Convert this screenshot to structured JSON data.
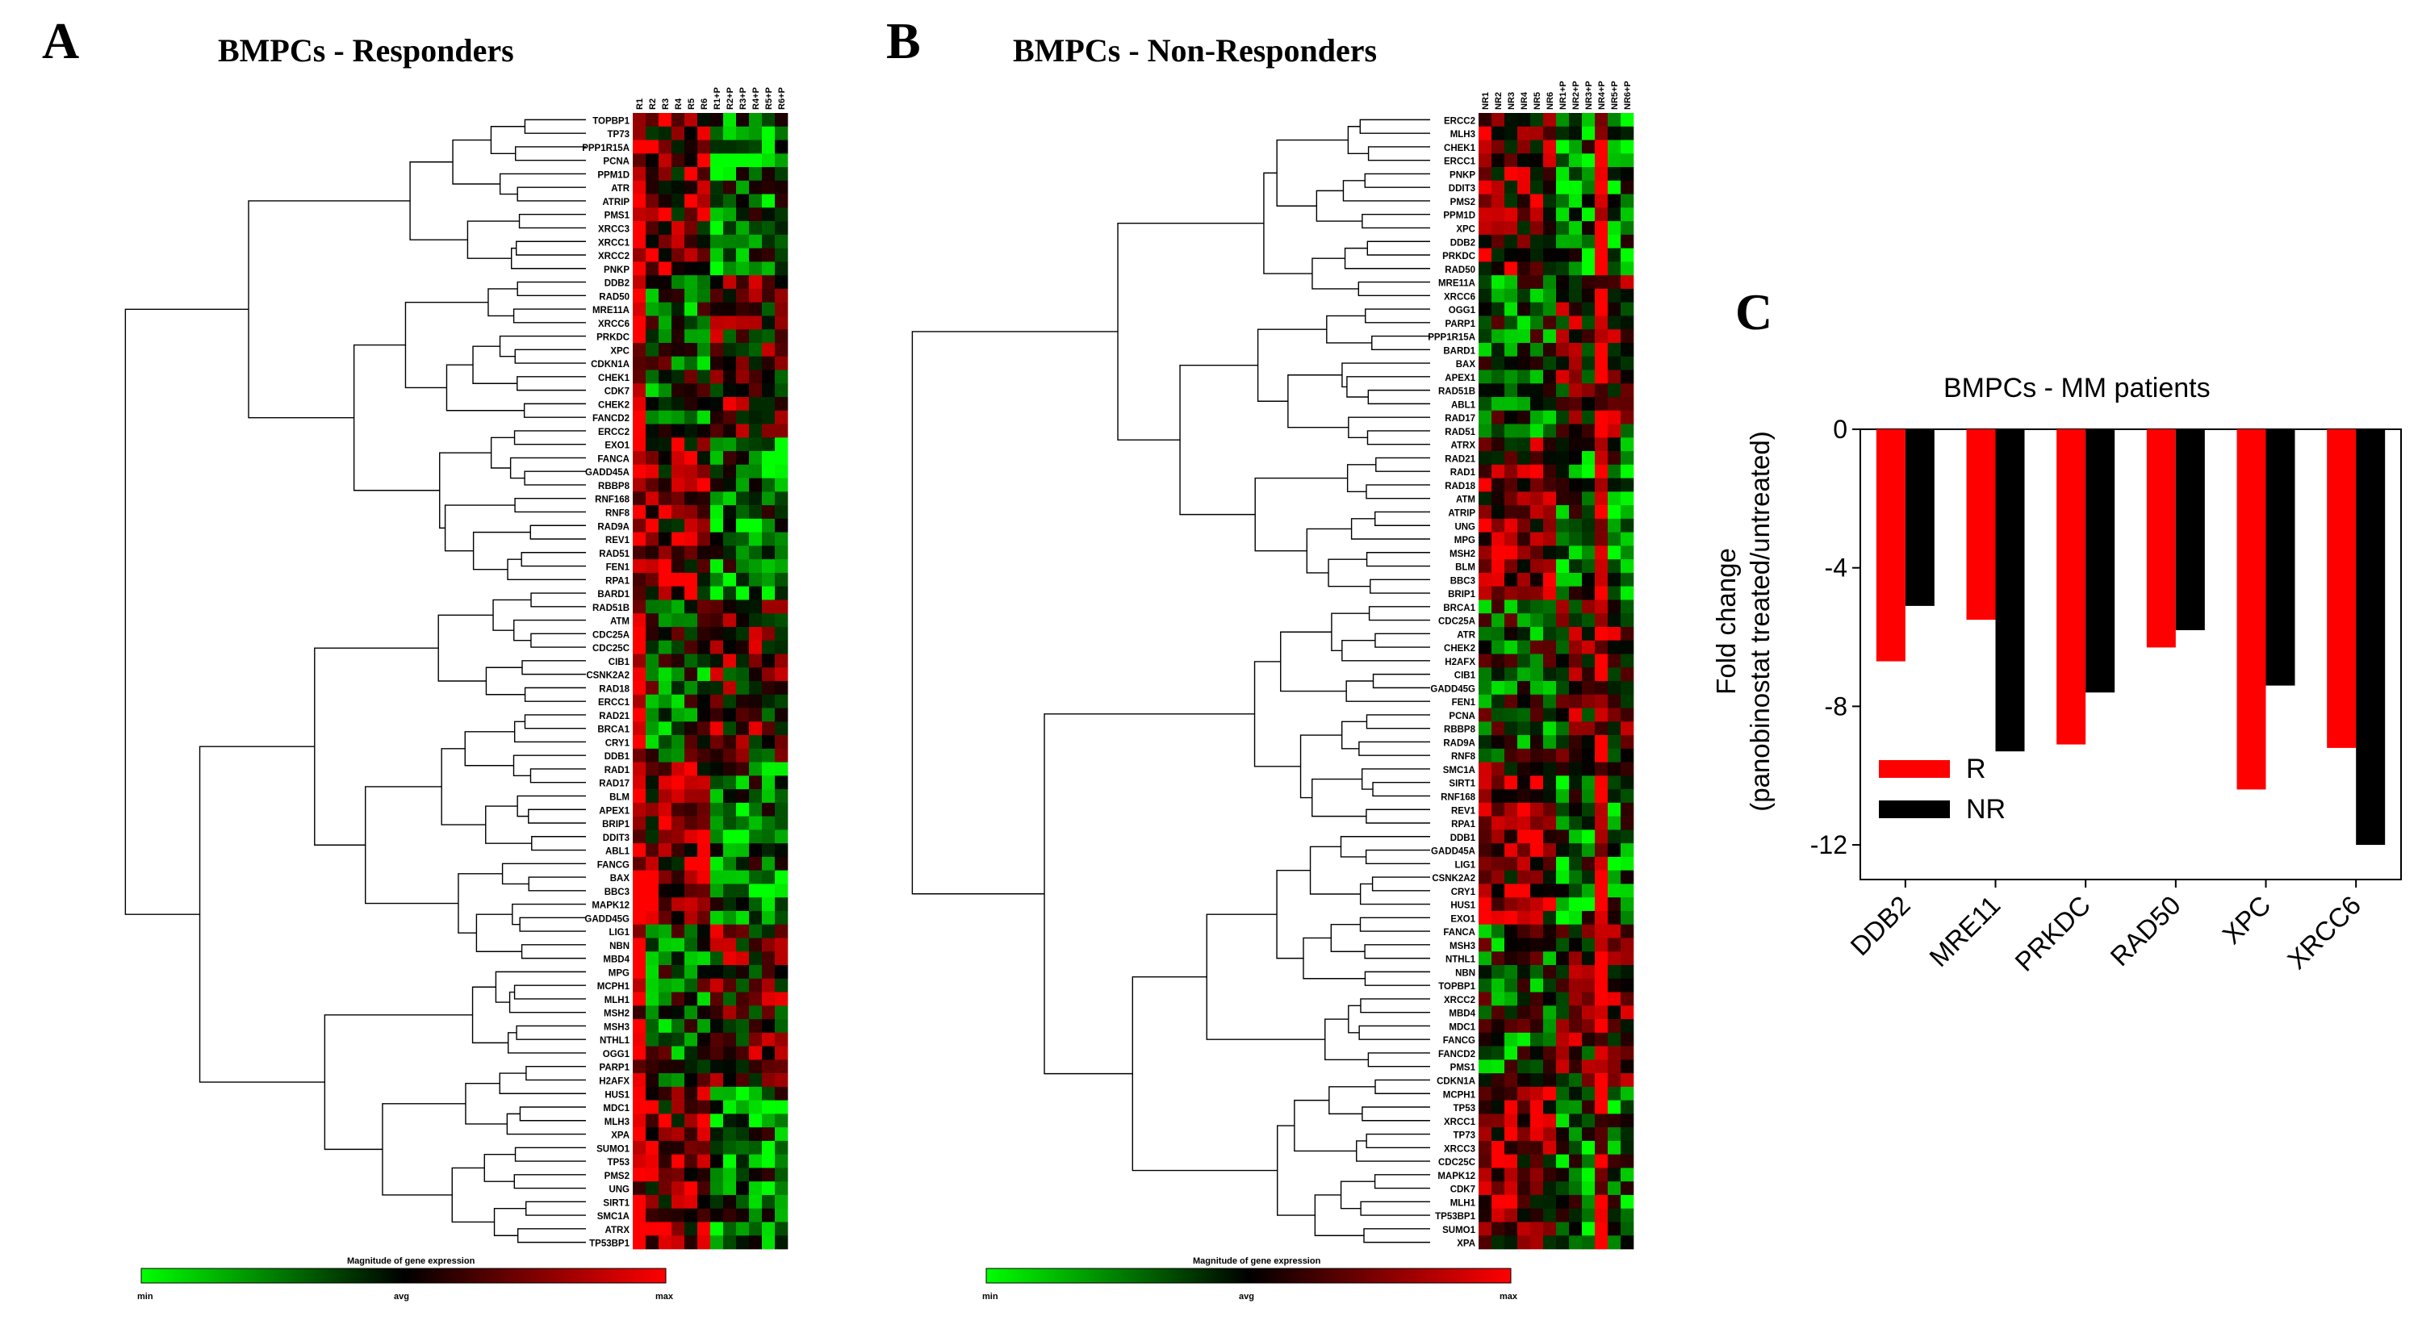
{
  "panel_a": {
    "letter": "A",
    "title": "BMPCs - Responders",
    "columns": [
      "R1",
      "R2",
      "R3",
      "R4",
      "R5",
      "R6",
      "R1+P",
      "R2+P",
      "R3+P",
      "R4+P",
      "R5+P",
      "R6+P"
    ],
    "genes": [
      "TOPBP1",
      "TP73",
      "PPP1R15A",
      "PCNA",
      "PPM1D",
      "ATR",
      "ATRIP",
      "PMS1",
      "XRCC3",
      "XRCC1",
      "XRCC2",
      "PNKP",
      "DDB2",
      "RAD50",
      "MRE11A",
      "XRCC6",
      "PRKDC",
      "XPC",
      "CDKN1A",
      "CHEK1",
      "CDK7",
      "CHEK2",
      "FANCD2",
      "ERCC2",
      "EXO1",
      "FANCA",
      "GADD45A",
      "RBBP8",
      "RNF168",
      "RNF8",
      "RAD9A",
      "REV1",
      "RAD51",
      "FEN1",
      "RPA1",
      "BARD1",
      "RAD51B",
      "ATM",
      "CDC25A",
      "CDC25C",
      "CIB1",
      "CSNK2A2",
      "RAD18",
      "ERCC1",
      "RAD21",
      "BRCA1",
      "CRY1",
      "DDB1",
      "RAD1",
      "RAD17",
      "BLM",
      "APEX1",
      "BRIP1",
      "DDIT3",
      "ABL1",
      "FANCG",
      "BAX",
      "BBC3",
      "MAPK12",
      "GADD45G",
      "LIG1",
      "NBN",
      "MBD4",
      "MPG",
      "MCPH1",
      "MLH1",
      "MSH2",
      "MSH3",
      "NTHL1",
      "OGG1",
      "PARP1",
      "H2AFX",
      "HUS1",
      "MDC1",
      "MLH3",
      "XPA",
      "SUMO1",
      "TP53",
      "PMS2",
      "UNG",
      "SIRT1",
      "SMC1A",
      "ATRX",
      "TP53BP1"
    ],
    "legend_label": "Magnitude of gene expression",
    "legend_min": "min",
    "legend_avg": "avg",
    "legend_max": "max"
  },
  "panel_b": {
    "letter": "B",
    "title": "BMPCs - Non-Responders",
    "columns": [
      "NR1",
      "NR2",
      "NR3",
      "NR4",
      "NR5",
      "NR6",
      "NR1+P",
      "NR2+P",
      "NR3+P",
      "NR4+P",
      "NR5+P",
      "NR6+P"
    ],
    "genes": [
      "ERCC2",
      "MLH3",
      "CHEK1",
      "ERCC1",
      "PNKP",
      "DDIT3",
      "PMS2",
      "PPM1D",
      "XPC",
      "DDB2",
      "PRKDC",
      "RAD50",
      "MRE11A",
      "XRCC6",
      "OGG1",
      "PARP1",
      "PPP1R15A",
      "BARD1",
      "BAX",
      "APEX1",
      "RAD51B",
      "ABL1",
      "RAD17",
      "RAD51",
      "ATRX",
      "RAD21",
      "RAD1",
      "RAD18",
      "ATM",
      "ATRIP",
      "UNG",
      "MPG",
      "MSH2",
      "BLM",
      "BBC3",
      "BRIP1",
      "BRCA1",
      "CDC25A",
      "ATR",
      "CHEK2",
      "H2AFX",
      "CIB1",
      "GADD45G",
      "FEN1",
      "PCNA",
      "RBBP8",
      "RAD9A",
      "RNF8",
      "SMC1A",
      "SIRT1",
      "RNF168",
      "REV1",
      "RPA1",
      "DDB1",
      "GADD45A",
      "LIG1",
      "CSNK2A2",
      "CRY1",
      "HUS1",
      "EXO1",
      "FANCA",
      "MSH3",
      "NTHL1",
      "NBN",
      "TOPBP1",
      "XRCC2",
      "MBD4",
      "MDC1",
      "FANCG",
      "FANCD2",
      "PMS1",
      "CDKN1A",
      "MCPH1",
      "TP53",
      "XRCC1",
      "TP73",
      "XRCC3",
      "CDC25C",
      "MAPK12",
      "CDK7",
      "MLH1",
      "TP53BP1",
      "SUMO1",
      "XPA"
    ],
    "legend_label": "Magnitude of gene expression",
    "legend_min": "min",
    "legend_avg": "avg",
    "legend_max": "max"
  },
  "panel_c": {
    "letter": "C"
  },
  "colors": {
    "R": "#ff0000",
    "NR": "#000000",
    "heat_low": "#00ff00",
    "heat_mid": "#000000",
    "heat_high": "#ff0000"
  },
  "chart_data": {
    "type": "bar",
    "title": "BMPCs - MM patients",
    "categories": [
      "DDB2",
      "MRE11",
      "PRKDC",
      "RAD50",
      "XPC",
      "XRCC6"
    ],
    "series": [
      {
        "name": "R",
        "values": [
          -6.7,
          -5.5,
          -9.1,
          -6.3,
          -10.4,
          -9.2
        ]
      },
      {
        "name": "NR",
        "values": [
          -5.1,
          -9.3,
          -7.6,
          -5.8,
          -7.4,
          -12.0
        ]
      }
    ],
    "ylabel_line1": "Fold change",
    "ylabel_line2": "(panobinostat treated/untreated)",
    "ylim": [
      -13,
      0
    ],
    "yticks": [
      "0",
      "-4",
      "-8",
      "-12"
    ],
    "ytick_values": [
      0,
      -4,
      -8,
      -12
    ],
    "legend_position": "lower-left"
  }
}
